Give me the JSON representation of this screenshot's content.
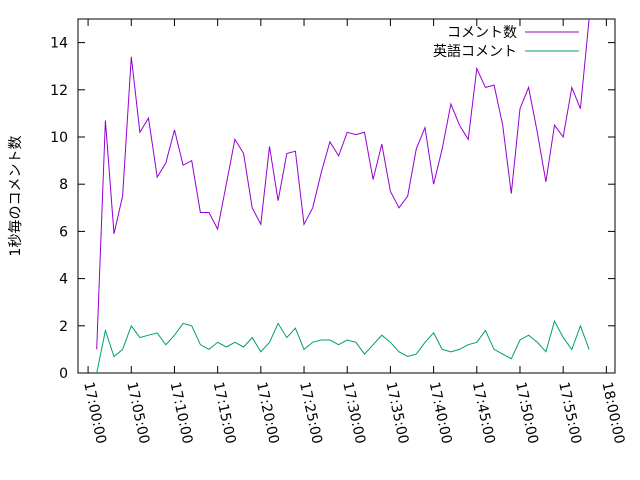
{
  "chart_data": {
    "type": "line",
    "ylabel": "1秒毎のコメント数",
    "x": [
      "17:01:00",
      "17:02:00",
      "17:03:00",
      "17:04:00",
      "17:05:00",
      "17:06:00",
      "17:07:00",
      "17:08:00",
      "17:09:00",
      "17:10:00",
      "17:11:00",
      "17:12:00",
      "17:13:00",
      "17:14:00",
      "17:15:00",
      "17:16:00",
      "17:17:00",
      "17:18:00",
      "17:19:00",
      "17:20:00",
      "17:21:00",
      "17:22:00",
      "17:23:00",
      "17:24:00",
      "17:25:00",
      "17:26:00",
      "17:27:00",
      "17:28:00",
      "17:29:00",
      "17:30:00",
      "17:31:00",
      "17:32:00",
      "17:33:00",
      "17:34:00",
      "17:35:00",
      "17:36:00",
      "17:37:00",
      "17:38:00",
      "17:39:00",
      "17:40:00",
      "17:41:00",
      "17:42:00",
      "17:43:00",
      "17:44:00",
      "17:45:00",
      "17:46:00",
      "17:47:00",
      "17:48:00",
      "17:49:00",
      "17:50:00",
      "17:51:00",
      "17:52:00",
      "17:53:00",
      "17:54:00",
      "17:55:00",
      "17:56:00",
      "17:57:00",
      "17:58:00"
    ],
    "series": [
      {
        "name": "コメント数",
        "color": "#9400d3",
        "values": [
          1.0,
          10.7,
          5.9,
          7.5,
          13.4,
          10.2,
          10.8,
          8.3,
          8.9,
          10.3,
          8.8,
          9.0,
          6.8,
          6.8,
          6.1,
          8.0,
          9.9,
          9.3,
          7.0,
          6.3,
          9.6,
          7.3,
          9.3,
          9.4,
          6.3,
          7.0,
          8.5,
          9.8,
          9.2,
          10.2,
          10.1,
          10.2,
          8.2,
          9.7,
          7.7,
          7.0,
          7.5,
          9.5,
          10.4,
          8.0,
          9.5,
          11.4,
          10.5,
          9.9,
          12.9,
          12.1,
          12.2,
          10.5,
          7.6,
          11.2,
          12.1,
          10.2,
          8.1,
          10.5,
          10.0,
          12.1,
          11.2,
          15.0
        ]
      },
      {
        "name": "英語コメント",
        "color": "#009e73",
        "values": [
          0.0,
          1.8,
          0.7,
          1.0,
          2.0,
          1.5,
          1.6,
          1.7,
          1.2,
          1.6,
          2.1,
          2.0,
          1.2,
          1.0,
          1.3,
          1.1,
          1.3,
          1.1,
          1.5,
          0.9,
          1.3,
          2.1,
          1.5,
          1.9,
          1.0,
          1.3,
          1.4,
          1.4,
          1.2,
          1.4,
          1.3,
          0.8,
          1.2,
          1.6,
          1.3,
          0.9,
          0.7,
          0.8,
          1.3,
          1.7,
          1.0,
          0.9,
          1.0,
          1.2,
          1.3,
          1.8,
          1.0,
          0.8,
          0.6,
          1.4,
          1.6,
          1.3,
          0.9,
          2.2,
          1.5,
          1.0,
          2.0,
          1.0
        ]
      }
    ],
    "xlim": [
      "16:58:50",
      "18:01:00"
    ],
    "xticks": [
      "17:00:00",
      "17:05:00",
      "17:10:00",
      "17:15:00",
      "17:20:00",
      "17:25:00",
      "17:30:00",
      "17:35:00",
      "17:40:00",
      "17:45:00",
      "17:50:00",
      "17:55:00",
      "18:00:00"
    ],
    "ylim": [
      0,
      15
    ],
    "yticks": [
      0,
      2,
      4,
      6,
      8,
      10,
      12,
      14
    ],
    "legend": "top-right"
  }
}
